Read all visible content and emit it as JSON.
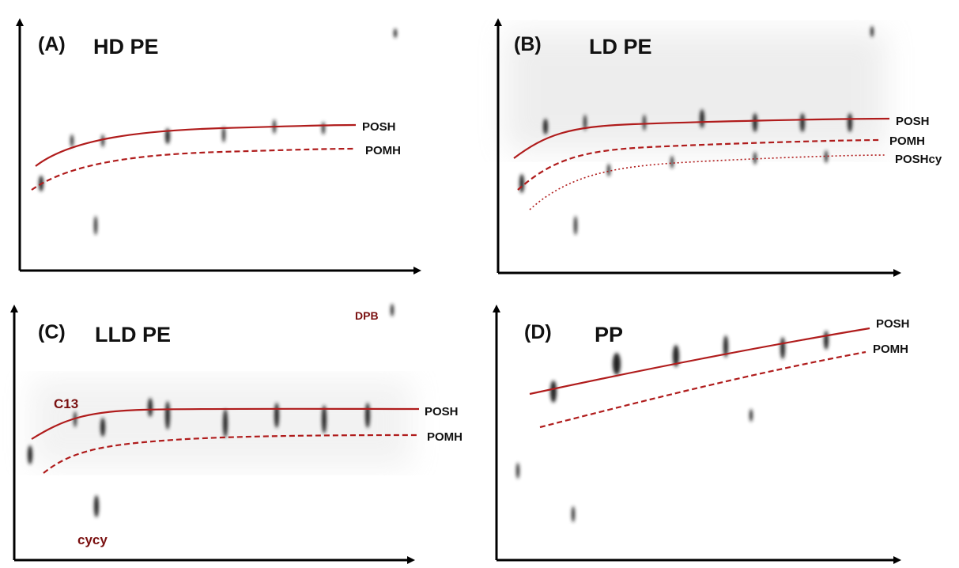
{
  "panels": [
    {
      "label": "(A)",
      "title": "HD PE",
      "curves": [
        "POSH",
        "POMH"
      ]
    },
    {
      "label": "(B)",
      "title": "LD PE",
      "curves": [
        "POSH",
        "POMH",
        "POSHcy"
      ]
    },
    {
      "label": "(C)",
      "title": "LLD PE",
      "curves": [
        "POSH",
        "POMH"
      ],
      "annotations": [
        "C13",
        "cycy",
        "DPB"
      ]
    },
    {
      "label": "(D)",
      "title": "PP",
      "curves": [
        "POSH",
        "POMH"
      ]
    }
  ]
}
